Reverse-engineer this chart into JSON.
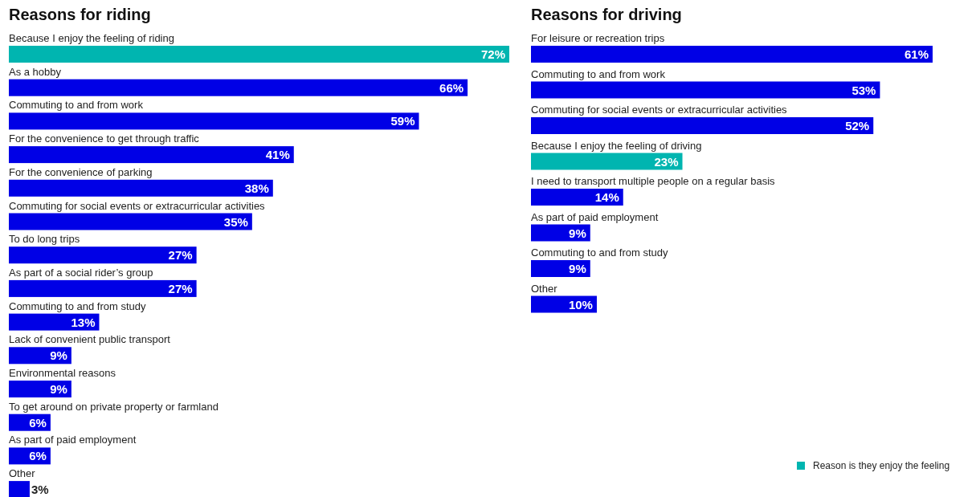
{
  "chart_data": [
    {
      "type": "bar",
      "orientation": "horizontal",
      "title": "Reasons for riding",
      "categories": [
        "Because I enjoy the feeling of riding",
        "As a hobby",
        "Commuting to and from work",
        "For the convenience to get through traffic",
        "For the convenience of parking",
        "Commuting for social events or extracurricular activities",
        "To do long trips",
        "As part of a social rider’s group",
        "Commuting to and from study",
        "Lack of convenient public transport",
        "Environmental reasons",
        "To get around on private property or farmland",
        "As part of paid employment",
        "Other"
      ],
      "series": [
        {
          "color": "#0000e6",
          "values": [
            null,
            66,
            59,
            41,
            38,
            35,
            27,
            27,
            13,
            9,
            9,
            6,
            6,
            3
          ],
          "value_labels": [
            null,
            "66%",
            "59%",
            "41%",
            "38%",
            "35%",
            "27%",
            "27%",
            "13%",
            "9%",
            "9%",
            "6%",
            "6%",
            "3%"
          ]
        },
        {
          "color": "#00b5b0",
          "values": [
            72,
            null,
            null,
            null,
            null,
            null,
            null,
            null,
            null,
            null,
            null,
            null,
            null,
            null
          ],
          "value_labels": [
            "72%",
            null,
            null,
            null,
            null,
            null,
            null,
            null,
            null,
            null,
            null,
            null,
            null,
            null
          ]
        }
      ]
    },
    {
      "type": "bar",
      "orientation": "horizontal",
      "title": "Reasons for driving",
      "legend": "bottom right",
      "categories": [
        "For leisure or recreation trips",
        "Commuting to and from work",
        "Commuting for social events or extracurricular activities",
        "Because I enjoy the feeling of driving",
        "I need to transport multiple people on a regular basis",
        "As part of paid employment",
        "Commuting to and from study",
        "Other"
      ],
      "series": [
        {
          "color": "#0000e6",
          "values": [
            61,
            53,
            52,
            null,
            14,
            9,
            9,
            10
          ],
          "value_labels": [
            "61%",
            "53%",
            "52%",
            null,
            "14%",
            "9%",
            "9%",
            "10%"
          ]
        },
        {
          "name": "Reason is they enjoy the feeling",
          "color": "#00b5b0",
          "values": [
            null,
            null,
            null,
            23,
            null,
            null,
            null,
            null
          ],
          "value_labels": [
            null,
            null,
            null,
            "23%",
            null,
            null,
            null,
            null
          ]
        }
      ]
    }
  ]
}
